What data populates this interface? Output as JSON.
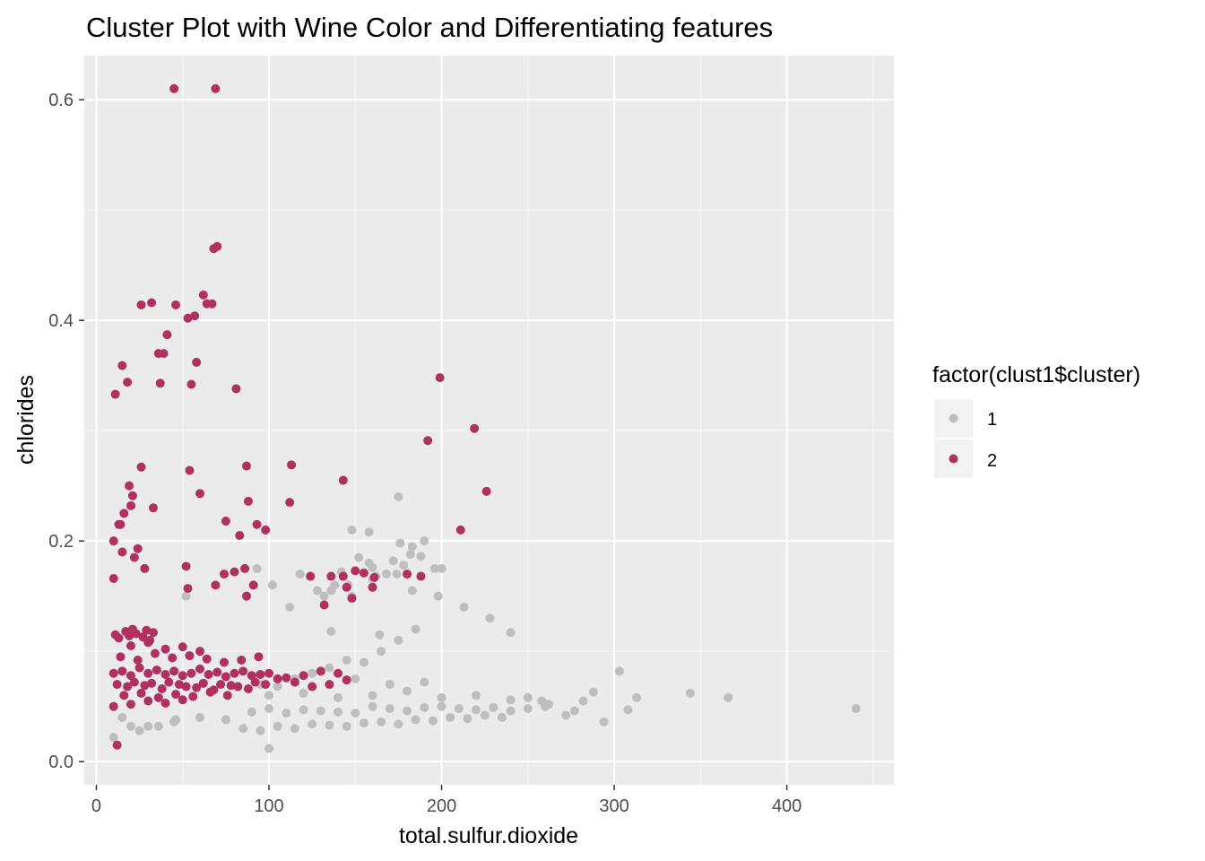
{
  "chart_data": {
    "type": "scatter",
    "title": "Cluster Plot with Wine Color and Differentiating features",
    "xlabel": "total.sulfur.dioxide",
    "ylabel": "chlorides",
    "xlim": [
      -7,
      462
    ],
    "ylim": [
      -0.021,
      0.64
    ],
    "x_ticks": [
      0,
      100,
      200,
      300,
      400
    ],
    "x_tick_labels": [
      "0",
      "100",
      "200",
      "300",
      "400"
    ],
    "y_ticks": [
      0.0,
      0.2,
      0.4,
      0.6
    ],
    "y_tick_labels": [
      "0.0",
      "0.2",
      "0.4",
      "0.6"
    ],
    "grid": true,
    "panel_background": "#ebebeb",
    "legend": {
      "title": "factor(clust1$cluster)",
      "placement": "right"
    },
    "series": [
      {
        "name": "1",
        "color": "#bebebe",
        "x": [
          30,
          45,
          60,
          75,
          90,
          100,
          110,
          120,
          130,
          140,
          150,
          160,
          170,
          180,
          190,
          200,
          210,
          220,
          230,
          240,
          250,
          260,
          85,
          95,
          105,
          115,
          125,
          135,
          145,
          155,
          165,
          175,
          185,
          195,
          205,
          215,
          225,
          235,
          100,
          120,
          140,
          160,
          180,
          200,
          220,
          240,
          150,
          170,
          190,
          135,
          145,
          155,
          165,
          175,
          185,
          95,
          105,
          115,
          125,
          112,
          132,
          146,
          158,
          168,
          183,
          198,
          213,
          228,
          93,
          102,
          118,
          128,
          138,
          142,
          152,
          148,
          158,
          160,
          162,
          160,
          175,
          176,
          183,
          188,
          190,
          172,
          178,
          182,
          200,
          174,
          196,
          136,
          148,
          136,
          164,
          240,
          250,
          258,
          262,
          272,
          277,
          282,
          288,
          294,
          303,
          308,
          313,
          344,
          366,
          440,
          10,
          20,
          15,
          25,
          36,
          46,
          52,
          100
        ],
        "y": [
          0.032,
          0.036,
          0.04,
          0.038,
          0.045,
          0.048,
          0.044,
          0.047,
          0.046,
          0.045,
          0.044,
          0.05,
          0.048,
          0.046,
          0.049,
          0.05,
          0.048,
          0.047,
          0.049,
          0.046,
          0.048,
          0.05,
          0.03,
          0.028,
          0.032,
          0.03,
          0.034,
          0.033,
          0.032,
          0.035,
          0.036,
          0.034,
          0.038,
          0.037,
          0.04,
          0.039,
          0.042,
          0.04,
          0.06,
          0.062,
          0.058,
          0.06,
          0.064,
          0.058,
          0.06,
          0.056,
          0.075,
          0.07,
          0.072,
          0.085,
          0.092,
          0.09,
          0.1,
          0.11,
          0.12,
          0.07,
          0.068,
          0.075,
          0.08,
          0.14,
          0.15,
          0.16,
          0.18,
          0.17,
          0.155,
          0.15,
          0.14,
          0.13,
          0.175,
          0.16,
          0.17,
          0.155,
          0.16,
          0.172,
          0.185,
          0.21,
          0.208,
          0.176,
          0.168,
          0.165,
          0.24,
          0.198,
          0.195,
          0.186,
          0.2,
          0.182,
          0.178,
          0.188,
          0.175,
          0.17,
          0.175,
          0.155,
          0.15,
          0.118,
          0.115,
          0.117,
          0.058,
          0.055,
          0.052,
          0.042,
          0.046,
          0.055,
          0.063,
          0.036,
          0.082,
          0.047,
          0.058,
          0.062,
          0.058,
          0.048,
          0.022,
          0.032,
          0.04,
          0.028,
          0.032,
          0.038,
          0.15,
          0.012
        ]
      },
      {
        "name": "2",
        "color": "#b03060",
        "x": [
          10,
          15,
          20,
          25,
          30,
          35,
          40,
          45,
          50,
          55,
          60,
          65,
          70,
          75,
          80,
          85,
          90,
          95,
          100,
          110,
          120,
          130,
          140,
          12,
          18,
          22,
          28,
          32,
          38,
          42,
          48,
          52,
          58,
          62,
          68,
          72,
          78,
          82,
          88,
          92,
          98,
          105,
          115,
          125,
          135,
          145,
          14,
          24,
          34,
          44,
          54,
          64,
          74,
          84,
          94,
          20,
          30,
          40,
          50,
          60,
          16,
          26,
          36,
          46,
          56,
          66,
          76,
          11,
          13,
          17,
          19,
          21,
          23,
          27,
          29,
          31,
          33,
          10,
          20,
          30,
          40,
          50,
          45,
          69,
          70,
          68,
          67,
          62,
          64,
          57,
          53,
          46,
          41,
          39,
          26,
          32,
          15,
          18,
          11,
          36,
          37,
          55,
          58,
          81,
          54,
          87,
          60,
          75,
          199,
          192,
          219,
          226,
          112,
          143,
          113,
          83,
          88,
          93,
          16,
          13,
          19,
          21,
          14,
          24,
          28,
          33,
          53,
          69,
          26,
          20,
          10,
          22,
          52,
          86,
          98,
          74,
          80,
          91,
          87,
          180,
          188,
          211,
          124,
          136,
          145,
          155,
          143,
          161,
          132,
          160,
          150,
          148,
          10,
          15,
          12
        ],
        "y": [
          0.08,
          0.082,
          0.078,
          0.085,
          0.08,
          0.083,
          0.079,
          0.082,
          0.078,
          0.08,
          0.084,
          0.079,
          0.081,
          0.077,
          0.08,
          0.082,
          0.078,
          0.079,
          0.08,
          0.076,
          0.078,
          0.082,
          0.08,
          0.07,
          0.068,
          0.072,
          0.069,
          0.071,
          0.066,
          0.072,
          0.07,
          0.068,
          0.067,
          0.071,
          0.065,
          0.07,
          0.069,
          0.068,
          0.066,
          0.072,
          0.07,
          0.075,
          0.072,
          0.068,
          0.07,
          0.074,
          0.095,
          0.092,
          0.098,
          0.094,
          0.096,
          0.093,
          0.09,
          0.092,
          0.095,
          0.105,
          0.108,
          0.102,
          0.104,
          0.1,
          0.06,
          0.062,
          0.058,
          0.061,
          0.059,
          0.063,
          0.06,
          0.115,
          0.112,
          0.118,
          0.114,
          0.12,
          0.116,
          0.113,
          0.119,
          0.11,
          0.117,
          0.05,
          0.052,
          0.055,
          0.053,
          0.056,
          0.61,
          0.61,
          0.467,
          0.465,
          0.415,
          0.423,
          0.415,
          0.404,
          0.402,
          0.414,
          0.387,
          0.37,
          0.414,
          0.416,
          0.359,
          0.344,
          0.333,
          0.37,
          0.343,
          0.342,
          0.362,
          0.338,
          0.264,
          0.268,
          0.243,
          0.218,
          0.348,
          0.291,
          0.302,
          0.245,
          0.235,
          0.255,
          0.269,
          0.205,
          0.236,
          0.215,
          0.225,
          0.215,
          0.25,
          0.241,
          0.215,
          0.193,
          0.175,
          0.23,
          0.157,
          0.16,
          0.267,
          0.232,
          0.166,
          0.185,
          0.177,
          0.175,
          0.21,
          0.17,
          0.172,
          0.16,
          0.15,
          0.17,
          0.168,
          0.21,
          0.168,
          0.168,
          0.158,
          0.171,
          0.168,
          0.167,
          0.142,
          0.158,
          0.173,
          0.148,
          0.2,
          0.19,
          0.015
        ]
      }
    ]
  }
}
